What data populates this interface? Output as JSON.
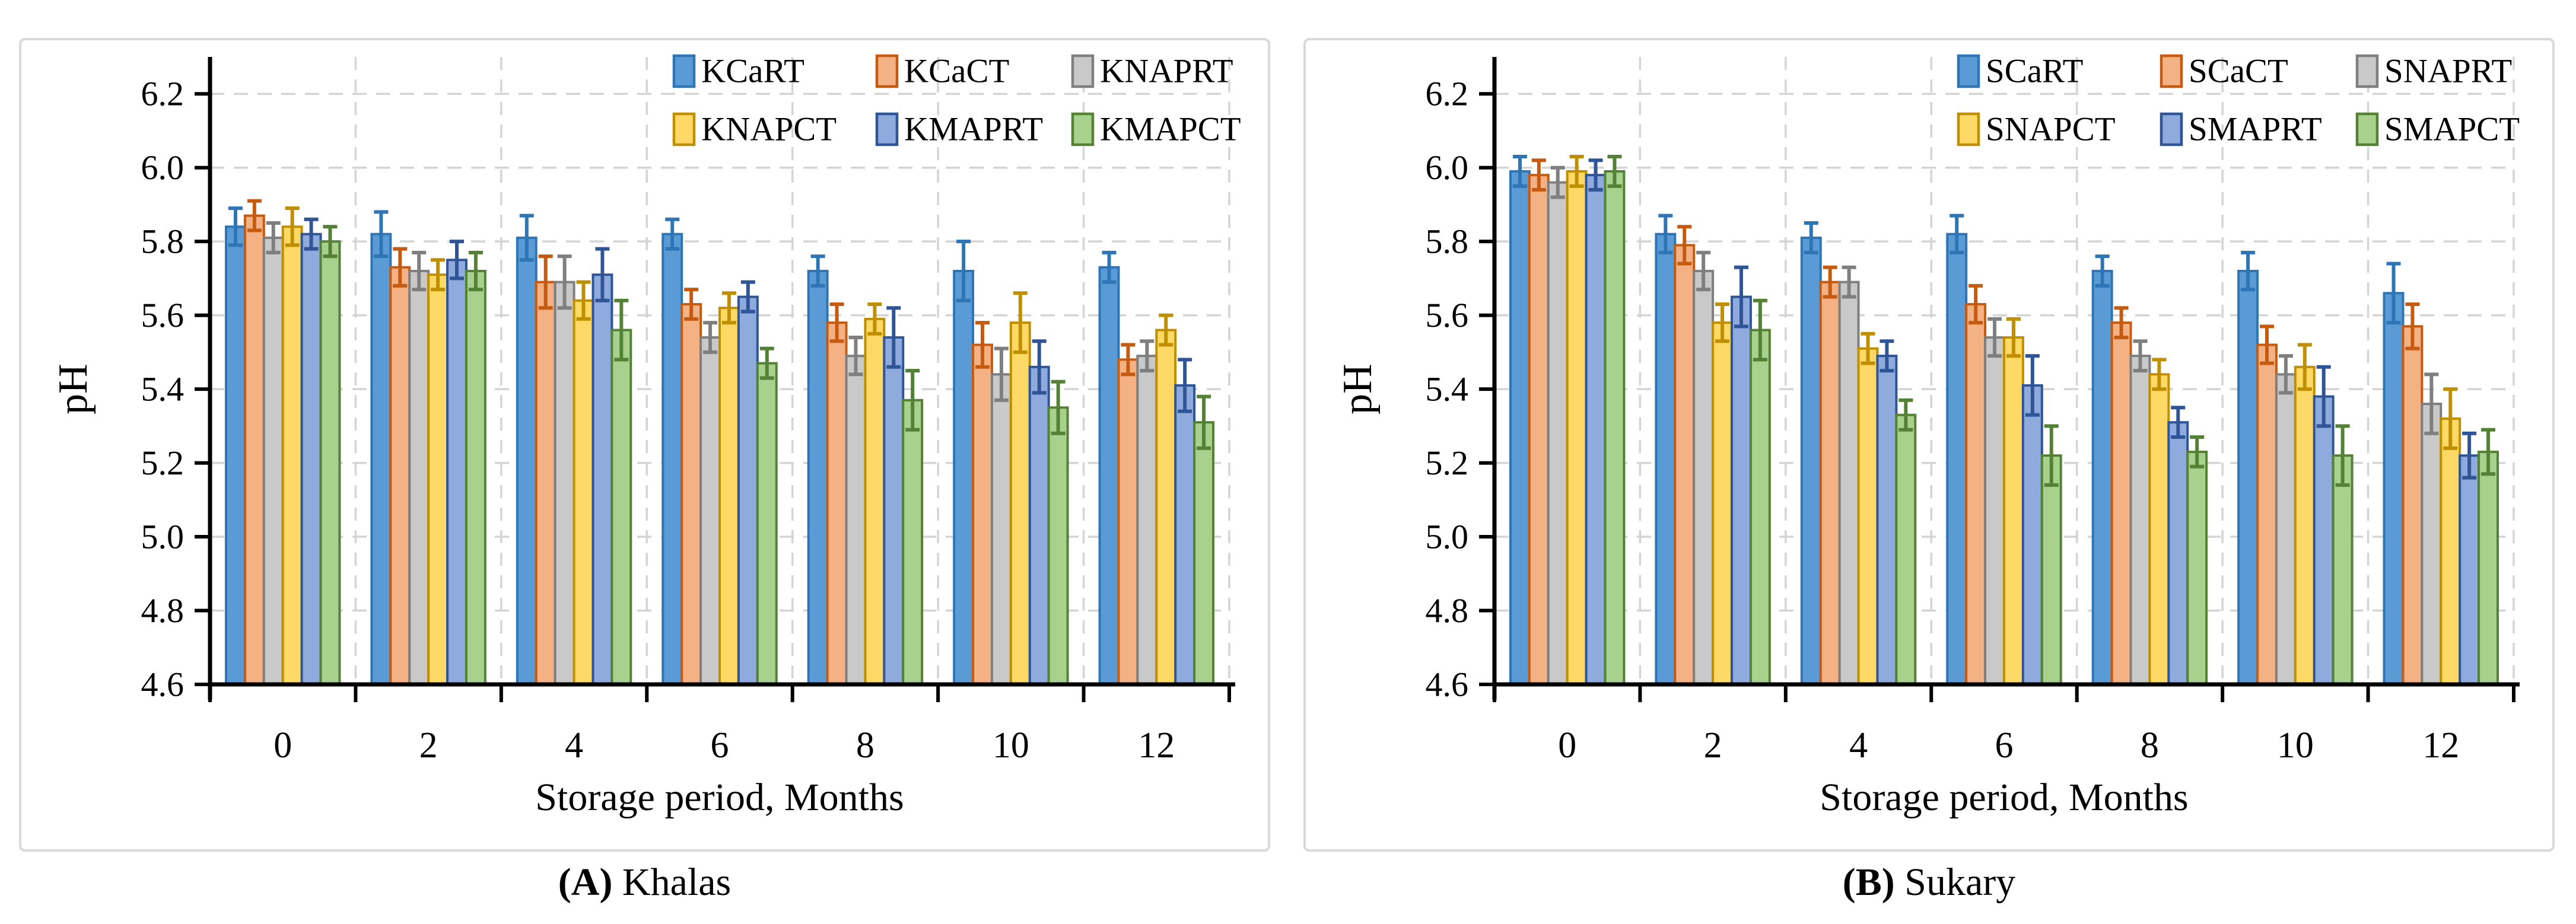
{
  "figure": {
    "background": "#ffffff",
    "panel_border_color": "#D9D9D9",
    "gridline_color": "#D4D4D4",
    "axis_color": "#000000",
    "text_color": "#000000"
  },
  "chart_data": [
    {
      "type": "bar",
      "title": "",
      "xlabel": "Storage period,  Months",
      "ylabel": "pH",
      "caption_bold": "(A)",
      "caption_text": " Khalas",
      "ylim": [
        4.6,
        6.3
      ],
      "yticks": [
        4.6,
        4.8,
        5.0,
        5.2,
        5.4,
        5.6,
        5.8,
        6.0,
        6.2
      ],
      "grid": true,
      "legend_position": "top-right",
      "categories": [
        "0",
        "2",
        "4",
        "6",
        "8",
        "10",
        "12"
      ],
      "series": [
        {
          "name": "KCaRT",
          "fill": "#5B9BD5",
          "stroke": "#2E75B6",
          "values": [
            5.84,
            5.82,
            5.81,
            5.82,
            5.72,
            5.72,
            5.73
          ],
          "errors": [
            0.05,
            0.06,
            0.06,
            0.04,
            0.04,
            0.08,
            0.04
          ]
        },
        {
          "name": "KCaCT",
          "fill": "#F4B183",
          "stroke": "#C55A11",
          "values": [
            5.87,
            5.73,
            5.69,
            5.63,
            5.58,
            5.52,
            5.48
          ],
          "errors": [
            0.04,
            0.05,
            0.07,
            0.04,
            0.05,
            0.06,
            0.04
          ]
        },
        {
          "name": "KNAPRT",
          "fill": "#C9C9C9",
          "stroke": "#7F7F7F",
          "values": [
            5.81,
            5.72,
            5.69,
            5.54,
            5.49,
            5.44,
            5.49
          ],
          "errors": [
            0.04,
            0.05,
            0.07,
            0.04,
            0.05,
            0.07,
            0.04
          ]
        },
        {
          "name": "KNAPCT",
          "fill": "#FFD966",
          "stroke": "#BF8F00",
          "values": [
            5.84,
            5.71,
            5.64,
            5.62,
            5.59,
            5.58,
            5.56
          ],
          "errors": [
            0.05,
            0.04,
            0.05,
            0.04,
            0.04,
            0.08,
            0.04
          ]
        },
        {
          "name": "KMAPRT",
          "fill": "#8FAADC",
          "stroke": "#2F5597",
          "values": [
            5.82,
            5.75,
            5.71,
            5.65,
            5.54,
            5.46,
            5.41
          ],
          "errors": [
            0.04,
            0.05,
            0.07,
            0.04,
            0.08,
            0.07,
            0.07
          ]
        },
        {
          "name": "KMAPCT",
          "fill": "#A9D18E",
          "stroke": "#538135",
          "values": [
            5.8,
            5.72,
            5.56,
            5.47,
            5.37,
            5.35,
            5.31
          ],
          "errors": [
            0.04,
            0.05,
            0.08,
            0.04,
            0.08,
            0.07,
            0.07
          ]
        }
      ]
    },
    {
      "type": "bar",
      "title": "",
      "xlabel": "Storage period,  Months",
      "ylabel": "pH",
      "caption_bold": "(B)",
      "caption_text": " Sukary",
      "ylim": [
        4.6,
        6.3
      ],
      "yticks": [
        4.6,
        4.8,
        5.0,
        5.2,
        5.4,
        5.6,
        5.8,
        6.0,
        6.2
      ],
      "grid": true,
      "legend_position": "top-right",
      "categories": [
        "0",
        "2",
        "4",
        "6",
        "8",
        "10",
        "12"
      ],
      "series": [
        {
          "name": "SCaRT",
          "fill": "#5B9BD5",
          "stroke": "#2E75B6",
          "values": [
            5.99,
            5.82,
            5.81,
            5.82,
            5.72,
            5.72,
            5.66
          ],
          "errors": [
            0.04,
            0.05,
            0.04,
            0.05,
            0.04,
            0.05,
            0.08
          ]
        },
        {
          "name": "SCaCT",
          "fill": "#F4B183",
          "stroke": "#C55A11",
          "values": [
            5.98,
            5.79,
            5.69,
            5.63,
            5.58,
            5.52,
            5.57
          ],
          "errors": [
            0.04,
            0.05,
            0.04,
            0.05,
            0.04,
            0.05,
            0.06
          ]
        },
        {
          "name": "SNAPRT",
          "fill": "#C9C9C9",
          "stroke": "#7F7F7F",
          "values": [
            5.96,
            5.72,
            5.69,
            5.54,
            5.49,
            5.44,
            5.36
          ],
          "errors": [
            0.04,
            0.05,
            0.04,
            0.05,
            0.04,
            0.05,
            0.08
          ]
        },
        {
          "name": "SNAPCT",
          "fill": "#FFD966",
          "stroke": "#BF8F00",
          "values": [
            5.99,
            5.58,
            5.51,
            5.54,
            5.44,
            5.46,
            5.32
          ],
          "errors": [
            0.04,
            0.05,
            0.04,
            0.05,
            0.04,
            0.06,
            0.08
          ]
        },
        {
          "name": "SMAPRT",
          "fill": "#8FAADC",
          "stroke": "#2F5597",
          "values": [
            5.98,
            5.65,
            5.49,
            5.41,
            5.31,
            5.38,
            5.22
          ],
          "errors": [
            0.04,
            0.08,
            0.04,
            0.08,
            0.04,
            0.08,
            0.06
          ]
        },
        {
          "name": "SMAPCT",
          "fill": "#A9D18E",
          "stroke": "#538135",
          "values": [
            5.99,
            5.56,
            5.33,
            5.22,
            5.23,
            5.22,
            5.23
          ],
          "errors": [
            0.04,
            0.08,
            0.04,
            0.08,
            0.04,
            0.08,
            0.06
          ]
        }
      ]
    }
  ]
}
